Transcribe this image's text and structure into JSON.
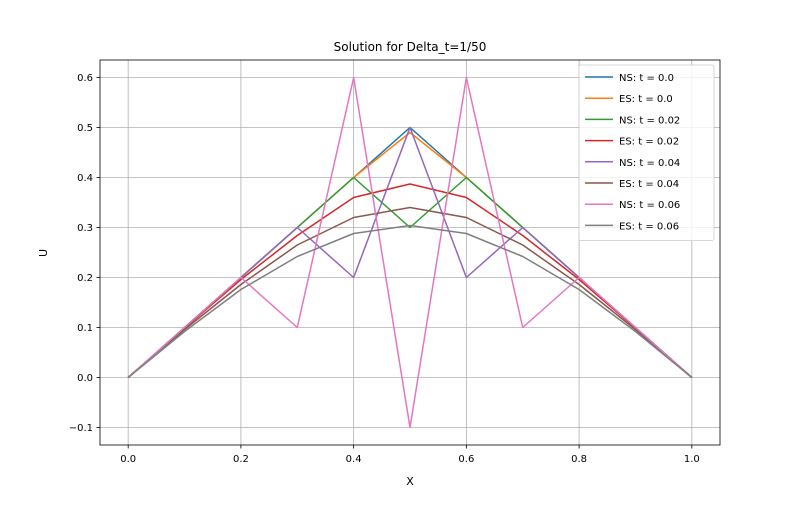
{
  "chart_data": {
    "type": "line",
    "title": "Solution for Delta_t=1/50",
    "xlabel": "X",
    "ylabel": "U",
    "xlim": [
      -0.05,
      1.05
    ],
    "ylim": [
      -0.135,
      0.635
    ],
    "grid": true,
    "legend_position": "top-right",
    "x": [
      0.0,
      0.1,
      0.2,
      0.3,
      0.4,
      0.5,
      0.6,
      0.7,
      0.8,
      0.9,
      1.0
    ],
    "x_ticks": [
      {
        "value": 0.0,
        "label": "0.0"
      },
      {
        "value": 0.2,
        "label": "0.2"
      },
      {
        "value": 0.4,
        "label": "0.4"
      },
      {
        "value": 0.6,
        "label": "0.6"
      },
      {
        "value": 0.8,
        "label": "0.8"
      },
      {
        "value": 1.0,
        "label": "1.0"
      }
    ],
    "y_ticks": [
      {
        "value": -0.1,
        "label": "−0.1"
      },
      {
        "value": 0.0,
        "label": "0.0"
      },
      {
        "value": 0.1,
        "label": "0.1"
      },
      {
        "value": 0.2,
        "label": "0.2"
      },
      {
        "value": 0.3,
        "label": "0.3"
      },
      {
        "value": 0.4,
        "label": "0.4"
      },
      {
        "value": 0.5,
        "label": "0.5"
      },
      {
        "value": 0.6,
        "label": "0.6"
      }
    ],
    "series": [
      {
        "name": "NS: t = 0.0",
        "color": "#1f77b4",
        "values": [
          0.0,
          0.1,
          0.2,
          0.3,
          0.4,
          0.5,
          0.4,
          0.3,
          0.2,
          0.1,
          0.0
        ]
      },
      {
        "name": "ES: t = 0.0",
        "color": "#ff7f0e",
        "values": [
          0.0,
          0.1,
          0.2,
          0.3,
          0.4,
          0.49,
          0.4,
          0.3,
          0.2,
          0.1,
          0.0
        ]
      },
      {
        "name": "NS: t = 0.02",
        "color": "#2ca02c",
        "values": [
          0.0,
          0.1,
          0.2,
          0.3,
          0.4,
          0.3,
          0.4,
          0.3,
          0.2,
          0.1,
          0.0
        ]
      },
      {
        "name": "ES: t = 0.02",
        "color": "#d62728",
        "values": [
          0.0,
          0.099,
          0.196,
          0.284,
          0.36,
          0.387,
          0.36,
          0.284,
          0.196,
          0.099,
          0.0
        ]
      },
      {
        "name": "NS: t = 0.04",
        "color": "#9467bd",
        "values": [
          0.0,
          0.1,
          0.2,
          0.3,
          0.2,
          0.5,
          0.2,
          0.3,
          0.2,
          0.1,
          0.0
        ]
      },
      {
        "name": "ES: t = 0.04",
        "color": "#8c564b",
        "values": [
          0.0,
          0.096,
          0.186,
          0.265,
          0.32,
          0.34,
          0.32,
          0.265,
          0.186,
          0.096,
          0.0
        ]
      },
      {
        "name": "NS: t = 0.06",
        "color": "#e377c2",
        "values": [
          0.0,
          0.1,
          0.2,
          0.1,
          0.6,
          -0.1,
          0.6,
          0.1,
          0.2,
          0.1,
          0.0
        ]
      },
      {
        "name": "ES: t = 0.06",
        "color": "#7f7f7f",
        "values": [
          0.0,
          0.092,
          0.176,
          0.242,
          0.288,
          0.304,
          0.288,
          0.242,
          0.176,
          0.092,
          0.0
        ]
      }
    ]
  }
}
